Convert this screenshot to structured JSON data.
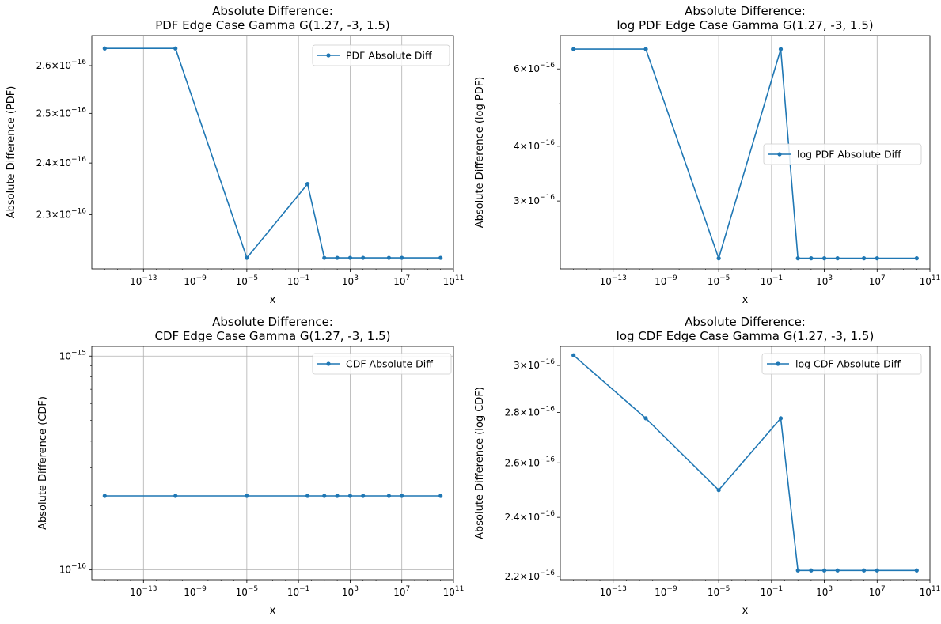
{
  "chart_data": [
    {
      "type": "line",
      "title": "Absolute Difference:\nPDF Edge Case Gamma G(1.27, -3, 1.5)",
      "xlabel": "x",
      "ylabel": "Absolute Difference (PDF)",
      "xscale": "log",
      "yscale": "log",
      "xlim": [
        1e-17,
        100000000000.0
      ],
      "ylim": [
        2.2e-16,
        2.665e-16
      ],
      "grid": "x",
      "legend_loc": "top-right",
      "x_ticks": [
        {
          "base": "10",
          "exp": "−13",
          "v": 1e-13
        },
        {
          "base": "10",
          "exp": "−9",
          "v": 1e-09
        },
        {
          "base": "10",
          "exp": "−5",
          "v": 1e-05
        },
        {
          "base": "10",
          "exp": "−1",
          "v": 0.1
        },
        {
          "base": "10",
          "exp": "3",
          "v": 1000.0
        },
        {
          "base": "10",
          "exp": "7",
          "v": 10000000.0
        },
        {
          "base": "10",
          "exp": "11",
          "v": 100000000000.0
        }
      ],
      "y_ticks": [
        {
          "base": "2.3×10",
          "exp": "−16",
          "v": 2.3e-16
        },
        {
          "base": "2.4×10",
          "exp": "−16",
          "v": 2.4e-16
        },
        {
          "base": "2.5×10",
          "exp": "−16",
          "v": 2.5e-16
        },
        {
          "base": "2.6×10",
          "exp": "−16",
          "v": 2.6e-16
        }
      ],
      "series": [
        {
          "name": "PDF Absolute Diff",
          "color": "#1f77b4",
          "x": [
            1e-16,
            3e-11,
            1e-05,
            0.5,
            10,
            100,
            1000,
            10000,
            1000000.0,
            10000000.0,
            10000000000.0
          ],
          "y": [
            2.637e-16,
            2.637e-16,
            2.22e-16,
            2.359e-16,
            2.22e-16,
            2.22e-16,
            2.22e-16,
            2.22e-16,
            2.22e-16,
            2.22e-16,
            2.22e-16
          ]
        }
      ]
    },
    {
      "type": "line",
      "title": "Absolute Difference:\nlog PDF Edge Case Gamma G(1.27, -3, 1.5)",
      "xlabel": "x",
      "ylabel": "Absolute Difference (log PDF)",
      "xscale": "log",
      "yscale": "log",
      "xlim": [
        1e-17,
        100000000000.0
      ],
      "ylim": [
        2.1e-16,
        7.15e-16
      ],
      "grid": "x",
      "legend_loc": "center-right",
      "x_ticks": [
        {
          "base": "10",
          "exp": "−13",
          "v": 1e-13
        },
        {
          "base": "10",
          "exp": "−9",
          "v": 1e-09
        },
        {
          "base": "10",
          "exp": "−5",
          "v": 1e-05
        },
        {
          "base": "10",
          "exp": "−1",
          "v": 0.1
        },
        {
          "base": "10",
          "exp": "3",
          "v": 1000.0
        },
        {
          "base": "10",
          "exp": "7",
          "v": 10000000.0
        },
        {
          "base": "10",
          "exp": "11",
          "v": 100000000000.0
        }
      ],
      "y_ticks": [
        {
          "base": "3×10",
          "exp": "−16",
          "v": 3e-16
        },
        {
          "base": "4×10",
          "exp": "−16",
          "v": 4e-16
        },
        {
          "base": "6×10",
          "exp": "−16",
          "v": 6e-16
        }
      ],
      "y_minor": [
        5e-16
      ],
      "series": [
        {
          "name": "log PDF Absolute Diff",
          "color": "#1f77b4",
          "x": [
            1e-16,
            3e-11,
            1e-05,
            0.5,
            10,
            100,
            1000,
            10000,
            1000000.0,
            10000000.0,
            10000000000.0
          ],
          "y": [
            6.66e-16,
            6.66e-16,
            2.22e-16,
            6.66e-16,
            2.22e-16,
            2.22e-16,
            2.22e-16,
            2.22e-16,
            2.22e-16,
            2.22e-16,
            2.22e-16
          ]
        }
      ]
    },
    {
      "type": "line",
      "title": "Absolute Difference:\nCDF Edge Case Gamma G(1.27, -3, 1.5)",
      "xlabel": "x",
      "ylabel": "Absolute Difference (CDF)",
      "xscale": "log",
      "yscale": "log",
      "xlim": [
        1e-17,
        100000000000.0
      ],
      "ylim": [
        9e-17,
        1.11e-15
      ],
      "grid": "both",
      "legend_loc": "top-right",
      "x_ticks": [
        {
          "base": "10",
          "exp": "−13",
          "v": 1e-13
        },
        {
          "base": "10",
          "exp": "−9",
          "v": 1e-09
        },
        {
          "base": "10",
          "exp": "−5",
          "v": 1e-05
        },
        {
          "base": "10",
          "exp": "−1",
          "v": 0.1
        },
        {
          "base": "10",
          "exp": "3",
          "v": 1000.0
        },
        {
          "base": "10",
          "exp": "7",
          "v": 10000000.0
        },
        {
          "base": "10",
          "exp": "11",
          "v": 100000000000.0
        }
      ],
      "y_ticks": [
        {
          "base": "10",
          "exp": "−16",
          "v": 1e-16
        },
        {
          "base": "10",
          "exp": "−15",
          "v": 1e-15
        }
      ],
      "y_minor": [
        2e-16,
        3e-16,
        4e-16,
        5e-16,
        6e-16,
        7e-16,
        8e-16,
        9e-16
      ],
      "series": [
        {
          "name": "CDF Absolute Diff",
          "color": "#1f77b4",
          "x": [
            1e-16,
            3e-11,
            1e-05,
            0.5,
            10,
            100,
            1000,
            10000,
            1000000.0,
            10000000.0,
            10000000000.0
          ],
          "y": [
            2.22e-16,
            2.22e-16,
            2.22e-16,
            2.22e-16,
            2.22e-16,
            2.22e-16,
            2.22e-16,
            2.22e-16,
            2.22e-16,
            2.22e-16,
            2.22e-16
          ]
        }
      ]
    },
    {
      "type": "line",
      "title": "Absolute Difference:\nlog CDF Edge Case Gamma G(1.27, -3, 1.5)",
      "xlabel": "x",
      "ylabel": "Absolute Difference (log CDF)",
      "xscale": "log",
      "yscale": "log",
      "xlim": [
        1e-17,
        100000000000.0
      ],
      "ylim": [
        2.19e-16,
        3.085e-16
      ],
      "grid": "x",
      "legend_loc": "top-right",
      "x_ticks": [
        {
          "base": "10",
          "exp": "−13",
          "v": 1e-13
        },
        {
          "base": "10",
          "exp": "−9",
          "v": 1e-09
        },
        {
          "base": "10",
          "exp": "−5",
          "v": 1e-05
        },
        {
          "base": "10",
          "exp": "−1",
          "v": 0.1
        },
        {
          "base": "10",
          "exp": "3",
          "v": 1000.0
        },
        {
          "base": "10",
          "exp": "7",
          "v": 10000000.0
        },
        {
          "base": "10",
          "exp": "11",
          "v": 100000000000.0
        }
      ],
      "y_ticks": [
        {
          "base": "2.2×10",
          "exp": "−16",
          "v": 2.2e-16
        },
        {
          "base": "2.4×10",
          "exp": "−16",
          "v": 2.4e-16
        },
        {
          "base": "2.6×10",
          "exp": "−16",
          "v": 2.6e-16
        },
        {
          "base": "2.8×10",
          "exp": "−16",
          "v": 2.8e-16
        },
        {
          "base": "3×10",
          "exp": "−16",
          "v": 3e-16
        }
      ],
      "series": [
        {
          "name": "log CDF Absolute Diff",
          "color": "#1f77b4",
          "x": [
            1e-16,
            3e-11,
            1e-05,
            0.5,
            10,
            100,
            1000,
            10000,
            1000000.0,
            10000000.0,
            10000000000.0
          ],
          "y": [
            3.045e-16,
            2.776e-16,
            2.498e-16,
            2.776e-16,
            2.22e-16,
            2.22e-16,
            2.22e-16,
            2.22e-16,
            2.22e-16,
            2.22e-16,
            2.22e-16
          ]
        }
      ]
    }
  ]
}
